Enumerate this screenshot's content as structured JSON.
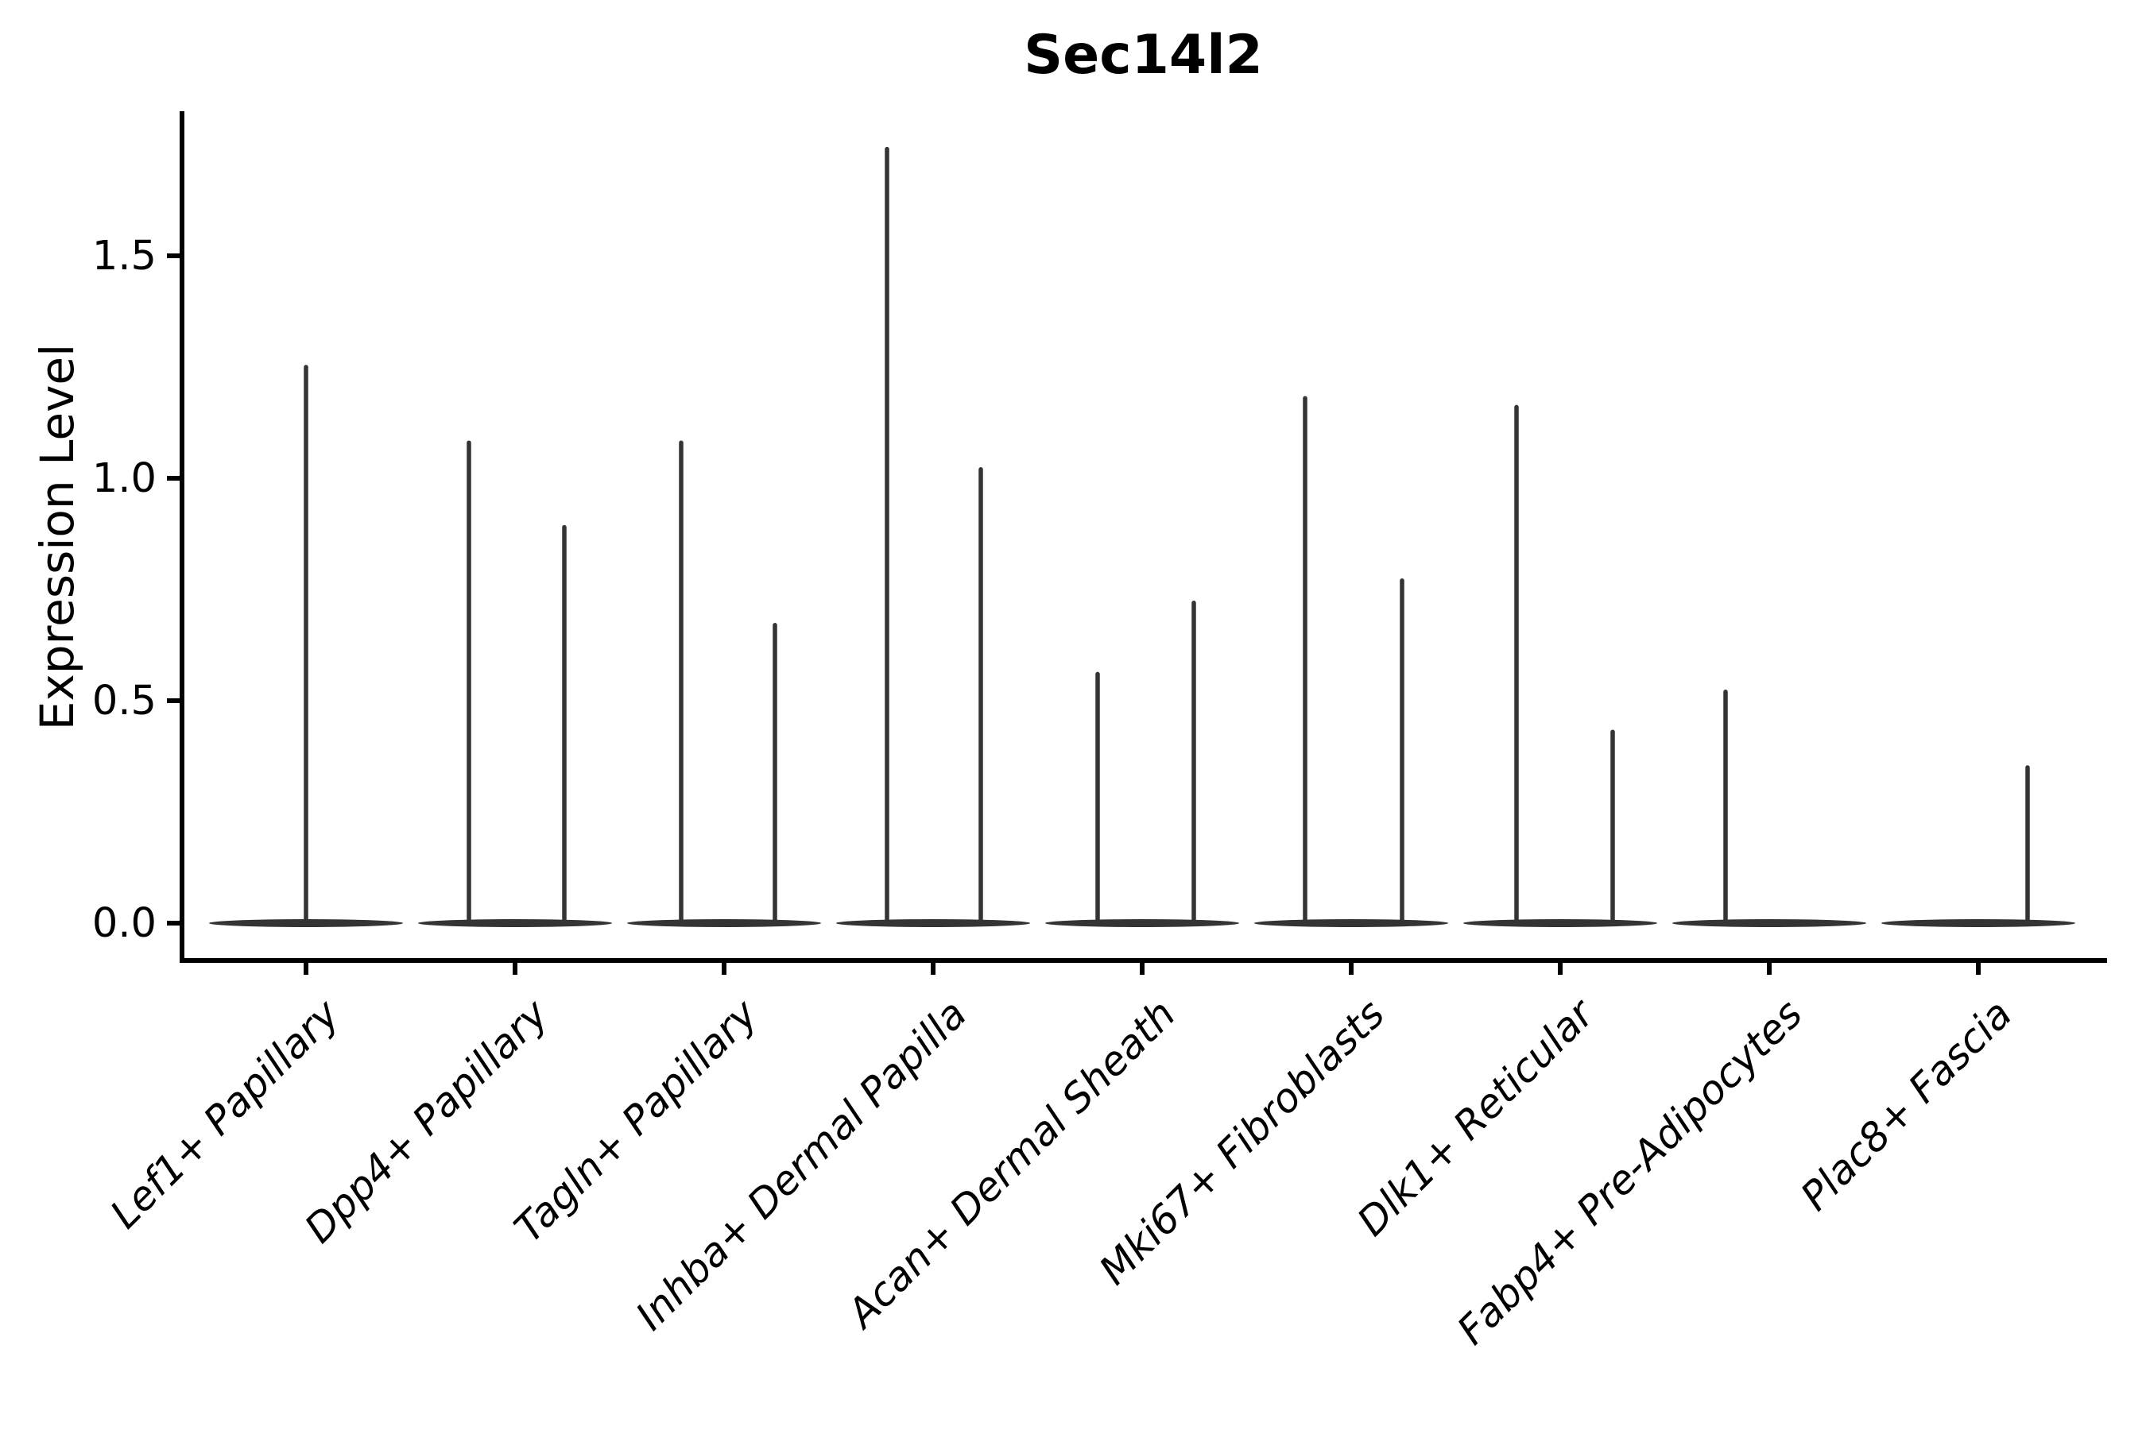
{
  "figure": {
    "title": "Sec14l2"
  },
  "yaxis": {
    "label": "Expression Level",
    "tick_labels": [
      "0.0",
      "0.5",
      "1.0",
      "1.5"
    ]
  },
  "xaxis": {
    "categories": [
      "Lef1+ Papillary",
      "Dpp4+ Papillary",
      "Tagln+ Papillary",
      "Inhba+ Dermal Papilla",
      "Acan+ Dermal Sheath",
      "Mki67+ Fibroblasts",
      "Dlk1+ Reticular",
      "Fabp4+ Pre-Adipocytes",
      "Plac8+ Fascia"
    ]
  },
  "chart_data": {
    "type": "violin",
    "title": "Sec14l2",
    "xlabel": "",
    "ylabel": "Expression Level",
    "ylim": [
      -0.05,
      1.83
    ],
    "yticks": [
      0.0,
      0.5,
      1.0,
      1.5
    ],
    "grid": false,
    "legend": null,
    "background": "#ffffff",
    "ink_color": "#343434",
    "axis_color": "#000000",
    "categories": [
      "Lef1+ Papillary",
      "Dpp4+ Papillary",
      "Tagln+ Papillary",
      "Inhba+ Dermal Papilla",
      "Acan+ Dermal Sheath",
      "Mki67+ Fibroblasts",
      "Dlk1+ Reticular",
      "Fabp4+ Pre-Adipocytes",
      "Plac8+ Fascia"
    ],
    "violins": [
      {
        "category": "Lef1+ Papillary",
        "peaks": [
          {
            "offset": 0,
            "max_expression": 1.25
          }
        ]
      },
      {
        "category": "Dpp4+ Papillary",
        "peaks": [
          {
            "offset": -58,
            "max_expression": 1.08
          },
          {
            "offset": 62,
            "max_expression": 0.89
          }
        ]
      },
      {
        "category": "Tagln+ Papillary",
        "peaks": [
          {
            "offset": -54,
            "max_expression": 1.08
          },
          {
            "offset": 64,
            "max_expression": 0.67
          }
        ]
      },
      {
        "category": "Inhba+ Dermal Papilla",
        "peaks": [
          {
            "offset": -58,
            "max_expression": 1.74
          },
          {
            "offset": 60,
            "max_expression": 1.02
          }
        ]
      },
      {
        "category": "Acan+ Dermal Sheath",
        "peaks": [
          {
            "offset": -56,
            "max_expression": 0.56
          },
          {
            "offset": 65,
            "max_expression": 0.72
          }
        ]
      },
      {
        "category": "Mki67+ Fibroblasts",
        "peaks": [
          {
            "offset": -58,
            "max_expression": 1.18
          },
          {
            "offset": 64,
            "max_expression": 0.77
          }
        ]
      },
      {
        "category": "Dlk1+ Reticular",
        "peaks": [
          {
            "offset": -55,
            "max_expression": 1.16
          },
          {
            "offset": 66,
            "max_expression": 0.43
          }
        ]
      },
      {
        "category": "Fabp4+ Pre-Adipocytes",
        "peaks": [
          {
            "offset": -55,
            "max_expression": 0.52
          }
        ]
      },
      {
        "category": "Plac8+ Fascia",
        "peaks": [
          {
            "offset": 62,
            "max_expression": 0.35
          }
        ]
      }
    ]
  }
}
